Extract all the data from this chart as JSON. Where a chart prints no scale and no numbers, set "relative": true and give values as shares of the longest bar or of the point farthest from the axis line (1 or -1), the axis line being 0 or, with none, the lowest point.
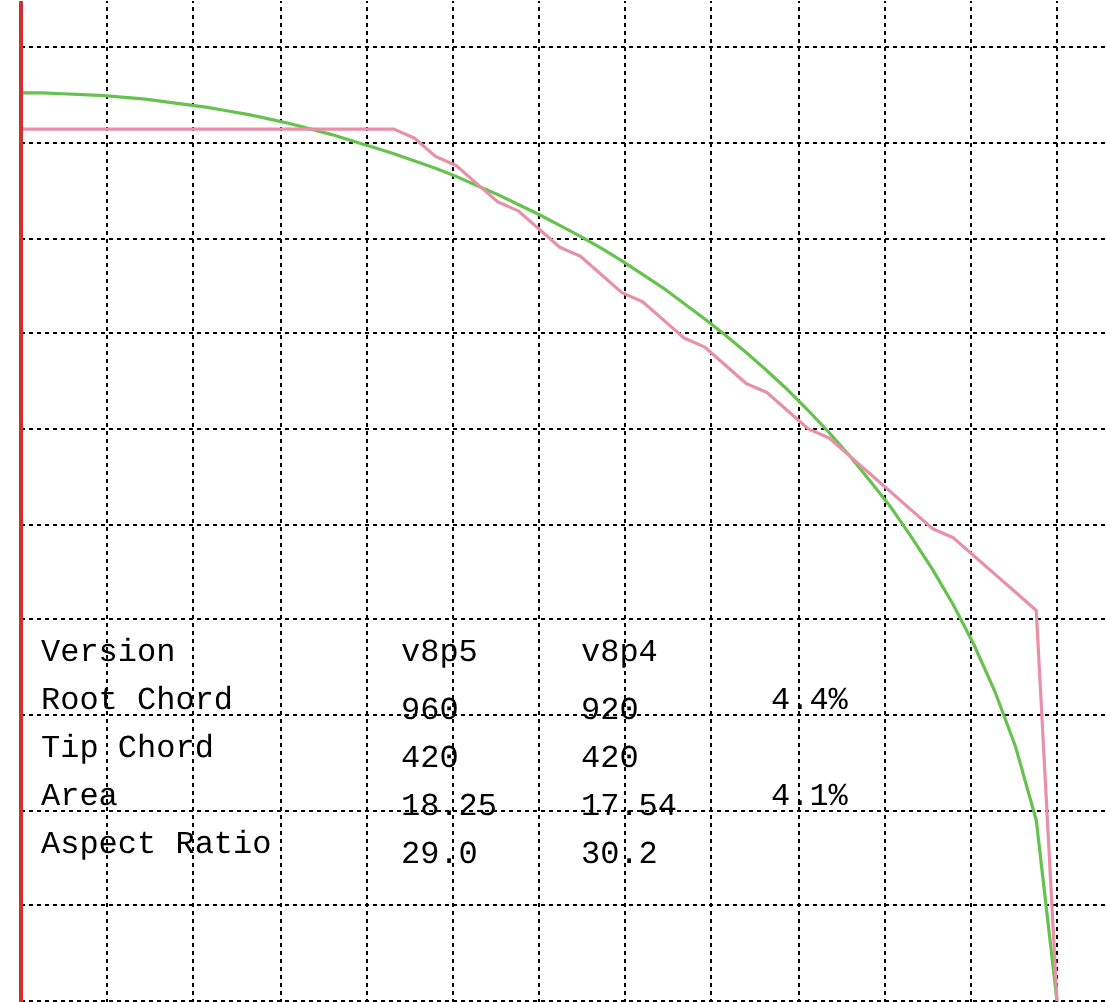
{
  "chart_data": {
    "type": "line",
    "relative": true,
    "grid": true,
    "tick_labels": false,
    "line_style": "solid",
    "marker": "none",
    "categories": [
      null,
      null,
      null,
      null,
      null,
      null,
      null,
      null,
      null,
      null,
      null,
      null,
      null,
      null,
      null,
      null,
      null,
      null,
      null,
      null,
      null,
      null,
      null,
      null,
      null,
      null,
      null,
      null,
      null,
      null,
      null,
      null,
      null,
      null,
      null,
      null,
      null,
      null,
      null,
      null,
      null,
      null,
      null,
      null,
      null,
      null,
      null,
      null,
      null,
      null,
      null
    ],
    "series": [
      {
        "color": "#66c24e",
        "values": [
          1,
          1,
          0.999,
          0.998,
          0.997,
          0.995,
          0.993,
          0.99,
          0.987,
          0.984,
          0.98,
          0.976,
          0.971,
          0.966,
          0.96,
          0.954,
          0.947,
          0.94,
          0.933,
          0.925,
          0.917,
          0.908,
          0.898,
          0.888,
          0.877,
          0.866,
          0.854,
          0.842,
          0.829,
          0.815,
          0.8,
          0.785,
          0.768,
          0.751,
          0.733,
          0.714,
          0.694,
          0.673,
          0.65,
          0.626,
          0.6,
          0.572,
          0.543,
          0.51,
          0.475,
          0.436,
          0.392,
          0.341,
          0.28,
          0.199,
          0
        ]
      },
      {
        "color": "#e890a8",
        "values": [
          0.96,
          0.96,
          0.96,
          0.96,
          0.96,
          0.96,
          0.96,
          0.96,
          0.96,
          0.96,
          0.96,
          0.96,
          0.96,
          0.96,
          0.96,
          0.96,
          0.96,
          0.96,
          0.96,
          0.95,
          0.93,
          0.92,
          0.9,
          0.88,
          0.87,
          0.85,
          0.83,
          0.82,
          0.8,
          0.78,
          0.77,
          0.75,
          0.73,
          0.72,
          0.7,
          0.68,
          0.67,
          0.65,
          0.63,
          0.62,
          0.6,
          0.58,
          0.56,
          0.54,
          0.52,
          0.51,
          0.49,
          0.47,
          0.45,
          0.43,
          0
        ]
      }
    ],
    "annotations": [
      "Version         v8p5    v8p4",
      "Root Chord      960     920      4.4%",
      "Tip Chord       420     420",
      "Area            18.25   17.54    4.1%",
      "Aspect Ratio    29.0    30.2"
    ]
  }
}
